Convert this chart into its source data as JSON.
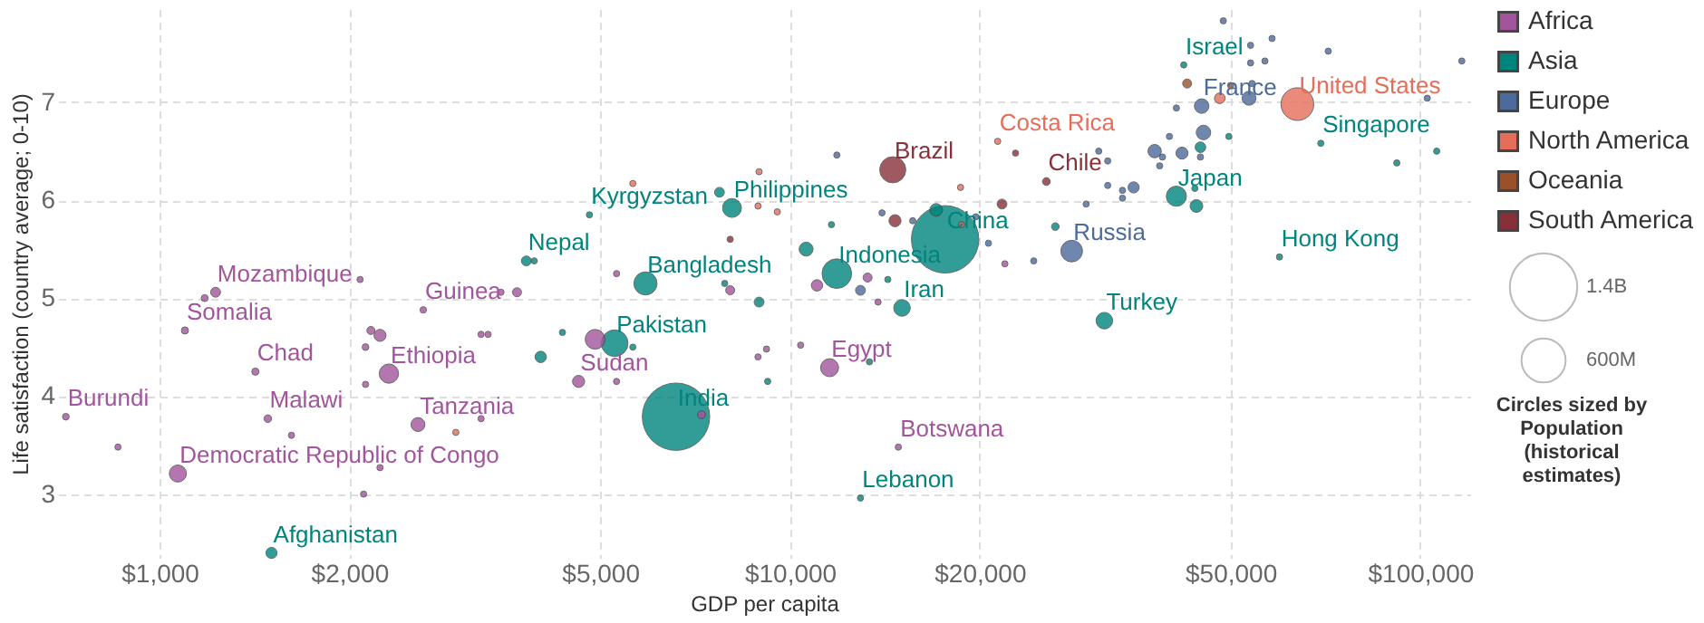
{
  "chart_data": {
    "type": "bubble",
    "xlabel": "GDP per capita",
    "ylabel": "Life satisfaction (country average; 0-10)",
    "legend_title": "Circles sized by Population (historical estimates)",
    "log": "x",
    "grid": true,
    "legend": "top right",
    "marker": "circle",
    "xlim": [
      690,
      120000
    ],
    "ylim": [
      2.35,
      7.95
    ],
    "xticks": [
      {
        "value": 1000,
        "label": "$1,000"
      },
      {
        "value": 2000,
        "label": "$2,000"
      },
      {
        "value": 5000,
        "label": "$5,000"
      },
      {
        "value": 10000,
        "label": "$10,000"
      },
      {
        "value": 20000,
        "label": "$20,000"
      },
      {
        "value": 50000,
        "label": "$50,000"
      },
      {
        "value": 100000,
        "label": "$100,000"
      }
    ],
    "yticks": [
      3,
      4,
      5,
      6,
      7
    ],
    "size_legend": [
      {
        "value": 1400,
        "label": "1.4B"
      },
      {
        "value": 600,
        "label": "600M"
      }
    ],
    "series": [
      {
        "name": "Africa",
        "color": "#a2559c",
        "x": [
          710,
          859,
          1069,
          1097,
          1179,
          1227,
          1419,
          1485,
          1619,
          2080,
          2164,
          2237,
          2122,
          2311,
          2122,
          2237,
          2107,
          2570,
          3236,
          2620,
          3480,
          3690,
          3236,
          3320,
          4908,
          4621,
          5309,
          5309,
          8040,
          7240,
          8900,
          9180,
          10400,
          11560,
          11040,
          13280,
          13800,
          14860,
          21930
        ],
        "values": [
          3.79,
          3.48,
          3.21,
          4.67,
          5.0,
          5.06,
          4.25,
          3.77,
          3.6,
          5.19,
          4.67,
          4.62,
          4.5,
          4.23,
          4.12,
          3.27,
          3.0,
          3.71,
          3.77,
          4.88,
          5.06,
          5.06,
          4.63,
          4.63,
          4.58,
          4.15,
          4.15,
          5.25,
          5.08,
          3.81,
          4.4,
          4.48,
          4.52,
          4.29,
          5.13,
          5.21,
          4.96,
          3.48,
          5.35
        ],
        "sizes": [
          14,
          12,
          90,
          16,
          15,
          30,
          16,
          18,
          12,
          12,
          20,
          45,
          14,
          115,
          12,
          12,
          12,
          60,
          12,
          13,
          12,
          25,
          12,
          12,
          120,
          45,
          12,
          12,
          25,
          20,
          12,
          12,
          12,
          100,
          40,
          25,
          12,
          12,
          12
        ]
      },
      {
        "name": "Asia",
        "color": "#00847e",
        "x": [
          1505,
          3818,
          3930,
          4356,
          4024,
          4808,
          8094,
          7730,
          5900,
          7880,
          8935,
          5272,
          5634,
          9220,
          6596,
          13370,
          12940,
          11640,
          10610,
          11870,
          14300,
          15060,
          17630,
          17060,
          26370,
          31540,
          42150,
          69540,
          91800,
          106200,
          44800,
          49700,
          41030,
          44150,
          43900,
          59800
        ],
        "values": [
          2.4,
          5.38,
          5.38,
          4.65,
          4.4,
          5.85,
          5.92,
          6.08,
          5.15,
          5.15,
          4.96,
          4.54,
          4.5,
          4.15,
          3.79,
          4.35,
          2.96,
          5.75,
          5.5,
          5.25,
          5.19,
          4.9,
          5.6,
          5.9,
          5.73,
          4.77,
          7.38,
          6.58,
          6.38,
          6.5,
          6.54,
          6.65,
          6.04,
          5.94,
          6.12,
          5.42
        ],
        "sizes": [
          38,
          30,
          12,
          12,
          40,
          12,
          110,
          30,
          165,
          12,
          30,
          220,
          12,
          12,
          1400,
          12,
          12,
          12,
          60,
          270,
          12,
          85,
          1400,
          50,
          18,
          85,
          12,
          12,
          12,
          12,
          35,
          12,
          125,
          50,
          12,
          12
        ]
      },
      {
        "name": "Europe",
        "color": "#4c6a9c",
        "x": [
          11870,
          14000,
          15660,
          12940,
          19720,
          20650,
          24370,
          27990,
          30900,
          29510,
          48700,
          53800,
          58200,
          53800,
          56700,
          54100,
          53500,
          45000,
          41030,
          71450,
          116400,
          102600,
          45300,
          40000,
          37900,
          39000,
          41880,
          44800,
          38600,
          31930,
          31930,
          33700,
          35100,
          33700
        ],
        "values": [
          6.46,
          5.87,
          5.79,
          5.08,
          5.83,
          5.56,
          5.38,
          5.48,
          6.5,
          5.96,
          7.83,
          7.58,
          7.65,
          7.4,
          7.42,
          7.19,
          7.04,
          6.96,
          6.94,
          7.52,
          7.42,
          7.04,
          6.69,
          6.65,
          6.5,
          6.44,
          6.48,
          6.44,
          6.35,
          6.4,
          6.15,
          6.1,
          6.13,
          6.02
        ],
        "sizes": [
          12,
          12,
          12,
          30,
          12,
          12,
          12,
          145,
          12,
          12,
          12,
          12,
          12,
          12,
          12,
          12,
          60,
          65,
          12,
          12,
          12,
          12,
          65,
          12,
          55,
          12,
          45,
          12,
          12,
          12,
          12,
          12,
          38,
          12
        ]
      },
      {
        "name": "North America",
        "color": "#e56e5a",
        "x": [
          2951,
          5634,
          8935,
          8900,
          9550,
          18720,
          18650,
          21360,
          48080,
          63840
        ],
        "values": [
          3.63,
          6.17,
          6.29,
          5.94,
          5.88,
          5.75,
          6.13,
          6.6,
          7.04,
          6.98
        ],
        "sizes": [
          12,
          12,
          12,
          12,
          12,
          12,
          12,
          12,
          35,
          330
        ]
      },
      {
        "name": "Oceania",
        "color": "#9a5129",
        "x": [
          42680,
          50030
        ],
        "values": [
          7.19,
          7.17
        ],
        "sizes": [
          25,
          12
        ]
      },
      {
        "name": "South America",
        "color": "#883039",
        "x": [
          8040,
          14560,
          14680,
          22800,
          21700,
          25520
        ],
        "values": [
          5.6,
          6.31,
          5.79,
          6.48,
          5.96,
          6.19
        ],
        "sizes": [
          12,
          210,
          45,
          12,
          30,
          19
        ]
      }
    ],
    "annotations": [
      {
        "text": "Burundi",
        "x": 710,
        "y": 3.79
      },
      {
        "text": "Somalia",
        "x": 1097,
        "y": 4.67
      },
      {
        "text": "Mozambique",
        "x": 1227,
        "y": 5.06
      },
      {
        "text": "Chad",
        "x": 1419,
        "y": 4.25
      },
      {
        "text": "Malawi",
        "x": 1485,
        "y": 3.77
      },
      {
        "text": "Democratic Republic of Congo",
        "x": 1069,
        "y": 3.21
      },
      {
        "text": "Ethiopia",
        "x": 2311,
        "y": 4.23
      },
      {
        "text": "Guinea",
        "x": 2620,
        "y": 4.88
      },
      {
        "text": "Tanzania",
        "x": 2570,
        "y": 3.71
      },
      {
        "text": "Sudan",
        "x": 4621,
        "y": 4.15
      },
      {
        "text": "Egypt",
        "x": 11560,
        "y": 4.29
      },
      {
        "text": "Botswana",
        "x": 14860,
        "y": 3.48
      },
      {
        "text": "Afghanistan",
        "x": 1505,
        "y": 2.4
      },
      {
        "text": "Nepal",
        "x": 3818,
        "y": 5.38
      },
      {
        "text": "Kyrgyzstan",
        "x": 4808,
        "y": 5.85
      },
      {
        "text": "Philippines",
        "x": 8094,
        "y": 5.92
      },
      {
        "text": "Bangladesh",
        "x": 5900,
        "y": 5.15
      },
      {
        "text": "Pakistan",
        "x": 5272,
        "y": 4.54
      },
      {
        "text": "India",
        "x": 6596,
        "y": 3.79
      },
      {
        "text": "Indonesia",
        "x": 11870,
        "y": 5.25
      },
      {
        "text": "Iran",
        "x": 15060,
        "y": 4.9
      },
      {
        "text": "China",
        "x": 17630,
        "y": 5.6
      },
      {
        "text": "Lebanon",
        "x": 12940,
        "y": 2.96
      },
      {
        "text": "Turkey",
        "x": 31540,
        "y": 4.77
      },
      {
        "text": "Israel",
        "x": 42150,
        "y": 7.38
      },
      {
        "text": "Japan",
        "x": 41030,
        "y": 6.04
      },
      {
        "text": "Singapore",
        "x": 69540,
        "y": 6.58
      },
      {
        "text": "Hong Kong",
        "x": 59800,
        "y": 5.42
      },
      {
        "text": "France",
        "x": 45000,
        "y": 6.96
      },
      {
        "text": "Russia",
        "x": 27990,
        "y": 5.48
      },
      {
        "text": "United States",
        "x": 63840,
        "y": 6.98
      },
      {
        "text": "Costa Rica",
        "x": 21360,
        "y": 6.6
      },
      {
        "text": "Brazil",
        "x": 14560,
        "y": 6.31
      },
      {
        "text": "Chile",
        "x": 25520,
        "y": 6.19
      }
    ]
  }
}
